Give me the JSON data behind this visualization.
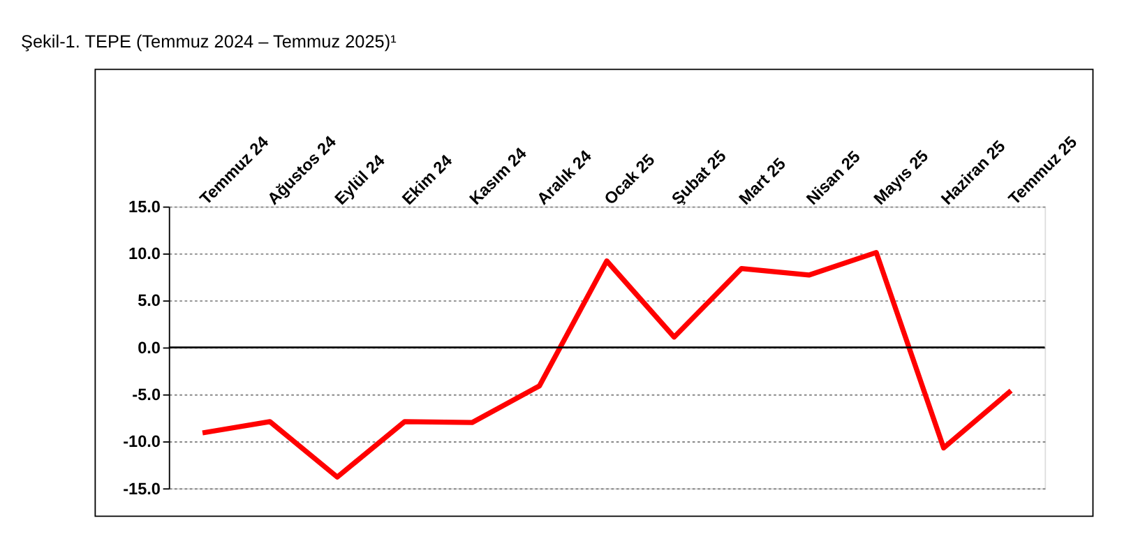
{
  "chart_data": {
    "type": "line",
    "title": "Şekil-1. TEPE (Temmuz 2024 – Temmuz 2025)¹",
    "categories": [
      "Temmuz 24",
      "Ağustos 24",
      "Eylül 24",
      "Ekim 24",
      "Kasım 24",
      "Aralık 24",
      "Ocak 25",
      "Şubat 25",
      "Mart 25",
      "Nisan 25",
      "Mayıs 25",
      "Haziran 25",
      "Temmuz 25"
    ],
    "series": [
      {
        "color": "#ff0000",
        "values": [
          -9.1,
          -7.9,
          -13.8,
          -7.9,
          -8.0,
          -4.1,
          9.2,
          1.1,
          8.4,
          7.7,
          10.1,
          -10.7,
          -4.6
        ]
      }
    ],
    "ylim": [
      -15,
      15
    ],
    "yticks": [
      {
        "value": -15,
        "label": "-15.0"
      },
      {
        "value": -10,
        "label": "-10.0"
      },
      {
        "value": -5,
        "label": "-5.0"
      },
      {
        "value": 0,
        "label": "0.0"
      },
      {
        "value": 5,
        "label": "5.0"
      },
      {
        "value": 10,
        "label": "10.0"
      },
      {
        "value": 15,
        "label": "15.0"
      }
    ],
    "ref_lines": [
      {
        "axis": "y",
        "value": 0,
        "color": "#000000"
      }
    ],
    "grid": "y",
    "marker": "none",
    "line_style": "solid"
  }
}
